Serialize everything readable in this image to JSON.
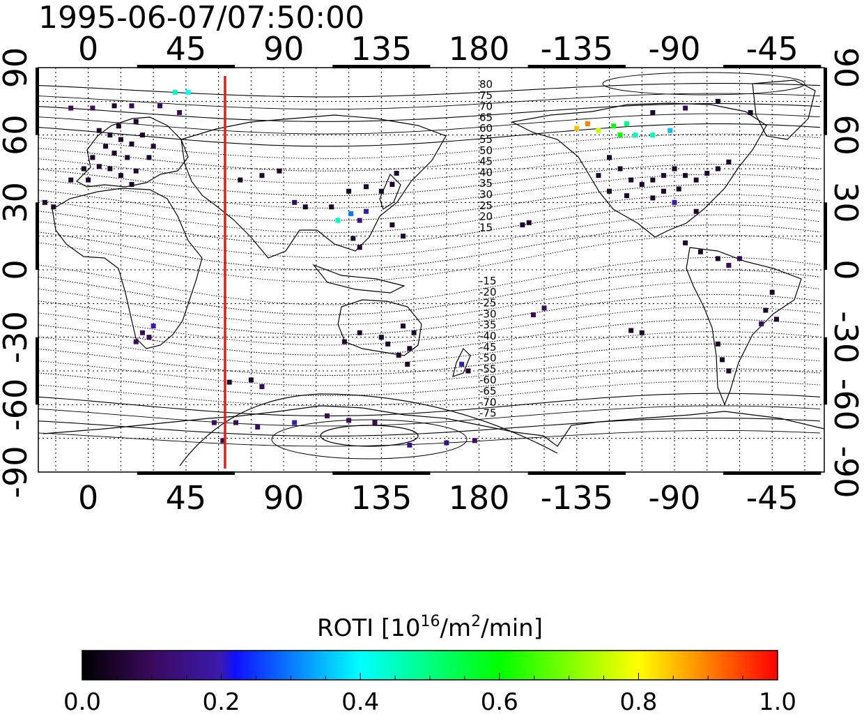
{
  "title": "1995-06-07/07:50:00",
  "map": {
    "top_lon_labels": [
      "0",
      "45",
      "90",
      "135",
      "180",
      "-135",
      "-90",
      "-45"
    ],
    "bottom_lon_labels": [
      "0",
      "45",
      "90",
      "135",
      "180",
      "-135",
      "-90",
      "-45"
    ],
    "left_lat_labels": [
      "90",
      "60",
      "30",
      "0",
      "-30",
      "-60",
      "-90"
    ],
    "right_lat_labels": [
      "90",
      "60",
      "30",
      "0",
      "-30",
      "-60",
      "-90"
    ],
    "lon_ticks": [
      0,
      45,
      90,
      135,
      180,
      225,
      270,
      315
    ],
    "lat_ticks": [
      90,
      60,
      30,
      0,
      -30,
      -60,
      -90
    ],
    "lon_range": [
      -23,
      339
    ],
    "lat_range": [
      -90,
      90
    ],
    "terminator_lon": 63,
    "terminator_color": "#d92020",
    "north_contour_labels": [
      "80",
      "75",
      "70",
      "65",
      "60",
      "55",
      "50",
      "45",
      "40",
      "35",
      "30",
      "25",
      "20",
      "15"
    ],
    "south_contour_labels": [
      "-15",
      "-20",
      "-25",
      "-30",
      "-35",
      "-40",
      "-45",
      "-50",
      "-55",
      "-60",
      "-65",
      "-70",
      "-75"
    ]
  },
  "roti_points": [
    {
      "lon": -8,
      "lat": 72,
      "v": 0.1
    },
    {
      "lon": 2,
      "lat": 72,
      "v": 0.1
    },
    {
      "lon": 12,
      "lat": 73,
      "v": 0.05
    },
    {
      "lon": 20,
      "lat": 73,
      "v": 0.1
    },
    {
      "lon": 33,
      "lat": 73,
      "v": 0.1
    },
    {
      "lon": 42,
      "lat": 70,
      "v": 0.1
    },
    {
      "lon": 40,
      "lat": 79,
      "v": 0.45
    },
    {
      "lon": 46,
      "lat": 79,
      "v": 0.4
    },
    {
      "lon": 5,
      "lat": 62,
      "v": 0.05
    },
    {
      "lon": 10,
      "lat": 60,
      "v": 0.05
    },
    {
      "lon": 15,
      "lat": 58,
      "v": 0.05
    },
    {
      "lon": 20,
      "lat": 56,
      "v": 0.05
    },
    {
      "lon": 25,
      "lat": 60,
      "v": 0.05
    },
    {
      "lon": 8,
      "lat": 55,
      "v": 0.05
    },
    {
      "lon": 12,
      "lat": 52,
      "v": 0.05
    },
    {
      "lon": 18,
      "lat": 50,
      "v": 0.05
    },
    {
      "lon": 2,
      "lat": 50,
      "v": 0.05
    },
    {
      "lon": -2,
      "lat": 45,
      "v": 0.05
    },
    {
      "lon": 5,
      "lat": 46,
      "v": 0.05
    },
    {
      "lon": 10,
      "lat": 45,
      "v": 0.05
    },
    {
      "lon": 15,
      "lat": 42,
      "v": 0.05
    },
    {
      "lon": 22,
      "lat": 44,
      "v": 0.05
    },
    {
      "lon": 28,
      "lat": 50,
      "v": 0.05
    },
    {
      "lon": 0,
      "lat": 40,
      "v": 0.05
    },
    {
      "lon": -8,
      "lat": 40,
      "v": 0.05
    },
    {
      "lon": 20,
      "lat": 38,
      "v": 0.05
    },
    {
      "lon": 30,
      "lat": 55,
      "v": 0.05
    },
    {
      "lon": 14,
      "lat": 64,
      "v": 0.05
    },
    {
      "lon": 22,
      "lat": 66,
      "v": 0.05
    },
    {
      "lon": -20,
      "lat": 30,
      "v": 0.05
    },
    {
      "lon": -16,
      "lat": 28,
      "v": 0.05
    },
    {
      "lon": 70,
      "lat": 40,
      "v": 0.05
    },
    {
      "lon": 80,
      "lat": 42,
      "v": 0.05
    },
    {
      "lon": 88,
      "lat": 44,
      "v": 0.05
    },
    {
      "lon": 95,
      "lat": 30,
      "v": 0.1
    },
    {
      "lon": 100,
      "lat": 28,
      "v": 0.05
    },
    {
      "lon": 120,
      "lat": 35,
      "v": 0.05
    },
    {
      "lon": 128,
      "lat": 37,
      "v": 0.05
    },
    {
      "lon": 135,
      "lat": 35,
      "v": 0.05
    },
    {
      "lon": 140,
      "lat": 38,
      "v": 0.05
    },
    {
      "lon": 142,
      "lat": 43,
      "v": 0.05
    },
    {
      "lon": 121,
      "lat": 25,
      "v": 0.3
    },
    {
      "lon": 125,
      "lat": 22,
      "v": 0.15
    },
    {
      "lon": 128,
      "lat": 26,
      "v": 0.2
    },
    {
      "lon": 115,
      "lat": 22,
      "v": 0.45
    },
    {
      "lon": 122,
      "lat": 14,
      "v": 0.05
    },
    {
      "lon": 125,
      "lat": 10,
      "v": 0.05
    },
    {
      "lon": 112,
      "lat": 28,
      "v": 0.05
    },
    {
      "lon": 140,
      "lat": 20,
      "v": 0.05
    },
    {
      "lon": 145,
      "lat": 15,
      "v": 0.05
    },
    {
      "lon": 30,
      "lat": -25,
      "v": 0.2
    },
    {
      "lon": 28,
      "lat": -30,
      "v": 0.1
    },
    {
      "lon": 22,
      "lat": -32,
      "v": 0.1
    },
    {
      "lon": 25,
      "lat": -28,
      "v": 0.1
    },
    {
      "lon": 118,
      "lat": -32,
      "v": 0.05
    },
    {
      "lon": 125,
      "lat": -28,
      "v": 0.05
    },
    {
      "lon": 135,
      "lat": -30,
      "v": 0.05
    },
    {
      "lon": 145,
      "lat": -25,
      "v": 0.05
    },
    {
      "lon": 150,
      "lat": -28,
      "v": 0.05
    },
    {
      "lon": 148,
      "lat": -35,
      "v": 0.05
    },
    {
      "lon": 143,
      "lat": -38,
      "v": 0.05
    },
    {
      "lon": 138,
      "lat": -33,
      "v": 0.05
    },
    {
      "lon": 147,
      "lat": -42,
      "v": 0.05
    },
    {
      "lon": 172,
      "lat": -42,
      "v": 0.2
    },
    {
      "lon": 175,
      "lat": -45,
      "v": 0.05
    },
    {
      "lon": 65,
      "lat": -50,
      "v": 0.05
    },
    {
      "lon": 75,
      "lat": -49,
      "v": 0.05
    },
    {
      "lon": 80,
      "lat": -52,
      "v": 0.1
    },
    {
      "lon": 58,
      "lat": -68,
      "v": 0.1
    },
    {
      "lon": 68,
      "lat": -68,
      "v": 0.1
    },
    {
      "lon": 78,
      "lat": -70,
      "v": 0.1
    },
    {
      "lon": 62,
      "lat": -76,
      "v": 0.1
    },
    {
      "lon": 95,
      "lat": -68,
      "v": 0.2
    },
    {
      "lon": 110,
      "lat": -65,
      "v": 0.1
    },
    {
      "lon": 120,
      "lat": -67,
      "v": 0.1
    },
    {
      "lon": 132,
      "lat": -68,
      "v": 0.1
    },
    {
      "lon": 148,
      "lat": -78,
      "v": 0.15
    },
    {
      "lon": 165,
      "lat": -77,
      "v": 0.15
    },
    {
      "lon": 178,
      "lat": -76,
      "v": 0.1
    },
    {
      "lon": -130,
      "lat": 65,
      "v": 0.9
    },
    {
      "lon": -125,
      "lat": 62,
      "v": 0.75
    },
    {
      "lon": -118,
      "lat": 64,
      "v": 0.6
    },
    {
      "lon": -112,
      "lat": 65,
      "v": 0.5
    },
    {
      "lon": -108,
      "lat": 60,
      "v": 0.45
    },
    {
      "lon": -100,
      "lat": 60,
      "v": 0.45
    },
    {
      "lon": -92,
      "lat": 62,
      "v": 0.35
    },
    {
      "lon": -135,
      "lat": 63,
      "v": 0.85
    },
    {
      "lon": -115,
      "lat": 60,
      "v": 0.6
    },
    {
      "lon": -120,
      "lat": 50,
      "v": 0.05
    },
    {
      "lon": -115,
      "lat": 45,
      "v": 0.05
    },
    {
      "lon": -110,
      "lat": 40,
      "v": 0.05
    },
    {
      "lon": -105,
      "lat": 38,
      "v": 0.05
    },
    {
      "lon": -100,
      "lat": 40,
      "v": 0.05
    },
    {
      "lon": -95,
      "lat": 42,
      "v": 0.05
    },
    {
      "lon": -90,
      "lat": 45,
      "v": 0.05
    },
    {
      "lon": -85,
      "lat": 42,
      "v": 0.05
    },
    {
      "lon": -80,
      "lat": 40,
      "v": 0.05
    },
    {
      "lon": -75,
      "lat": 43,
      "v": 0.05
    },
    {
      "lon": -120,
      "lat": 35,
      "v": 0.05
    },
    {
      "lon": -112,
      "lat": 33,
      "v": 0.05
    },
    {
      "lon": -100,
      "lat": 32,
      "v": 0.05
    },
    {
      "lon": -125,
      "lat": 42,
      "v": 0.05
    },
    {
      "lon": -70,
      "lat": 45,
      "v": 0.05
    },
    {
      "lon": -65,
      "lat": 48,
      "v": 0.05
    },
    {
      "lon": -95,
      "lat": 35,
      "v": 0.05
    },
    {
      "lon": -88,
      "lat": 36,
      "v": 0.05
    },
    {
      "lon": -90,
      "lat": 30,
      "v": 0.2
    },
    {
      "lon": -80,
      "lat": 26,
      "v": 0.05
    },
    {
      "lon": -100,
      "lat": 70,
      "v": 0.05
    },
    {
      "lon": -85,
      "lat": 72,
      "v": 0.1
    },
    {
      "lon": -70,
      "lat": 75,
      "v": 0.05
    },
    {
      "lon": -55,
      "lat": 70,
      "v": 0.05
    },
    {
      "lon": -85,
      "lat": 12,
      "v": 0.05
    },
    {
      "lon": -78,
      "lat": 8,
      "v": 0.05
    },
    {
      "lon": -70,
      "lat": 5,
      "v": 0.05
    },
    {
      "lon": -65,
      "lat": 2,
      "v": 0.1
    },
    {
      "lon": -60,
      "lat": 5,
      "v": 0.1
    },
    {
      "lon": -45,
      "lat": -10,
      "v": 0.05
    },
    {
      "lon": -48,
      "lat": -18,
      "v": 0.05
    },
    {
      "lon": -50,
      "lat": -24,
      "v": 0.1
    },
    {
      "lon": -43,
      "lat": -22,
      "v": 0.05
    },
    {
      "lon": -70,
      "lat": -33,
      "v": 0.05
    },
    {
      "lon": -68,
      "lat": -40,
      "v": 0.05
    },
    {
      "lon": -65,
      "lat": -45,
      "v": 0.05
    },
    {
      "lon": -150,
      "lat": -17,
      "v": 0.1
    },
    {
      "lon": -155,
      "lat": -20,
      "v": 0.1
    },
    {
      "lon": -157,
      "lat": 21,
      "v": 0.05
    },
    {
      "lon": -160,
      "lat": 20,
      "v": 0.05
    },
    {
      "lon": -105,
      "lat": -28,
      "v": 0.05
    },
    {
      "lon": -110,
      "lat": -27,
      "v": 0.05
    }
  ],
  "colorbar": {
    "title_prefix": "ROTI  [10",
    "title_exp1": "16",
    "title_mid": "/m",
    "title_exp2": "2",
    "title_suffix": "/min]",
    "tick_labels": [
      "0.0",
      "0.2",
      "0.4",
      "0.6",
      "0.8",
      "1.0"
    ],
    "range": [
      0.0,
      1.0
    ]
  }
}
